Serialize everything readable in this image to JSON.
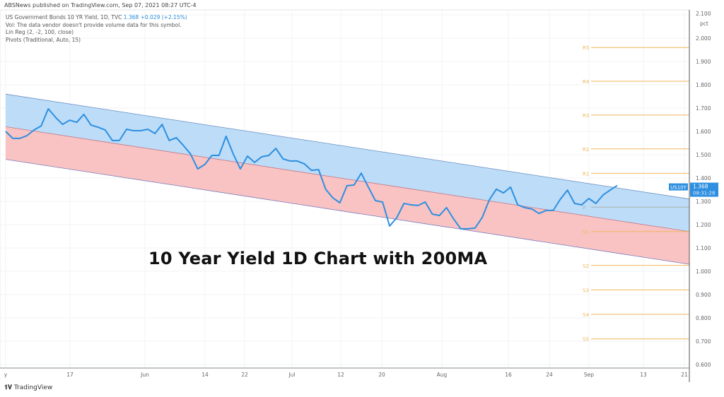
{
  "publisher_line": "ABSNews published on TradingView.com, Sep 07, 2021 08:27 UTC-4",
  "legend": {
    "symbol": "US Government Bonds 10 YR Yield, 1D, TVC",
    "price": "1.368",
    "change": "+0.029 (+2.15%)",
    "volume_note": "Vol: The data vendor doesn't provide volume data for this symbol.",
    "lin_reg": "Lin Reg (2, -2, 100, close)",
    "pivots": "Pivots (Traditional, Auto, 15)"
  },
  "overlay_title": "10 Year Yield 1D Chart with 200MA",
  "footer_logo": "TradingView",
  "colors": {
    "price_line": "#2e8fe0",
    "upper_band": "#bcdcf7",
    "lower_band": "#f9c3c3",
    "pivot_line": "#f0b55a",
    "pivot_p": "#b0b0b0",
    "price_tag": "#2e8fe0"
  },
  "chart_data": {
    "type": "line",
    "title": "",
    "xlabel": "",
    "ylabel": "",
    "unit_label": "pct",
    "ylim": [
      0.58,
      2.1
    ],
    "y_ticks": [
      "2.100",
      "2.000",
      "1.900",
      "1.800",
      "1.700",
      "1.600",
      "1.500",
      "1.400",
      "1.300",
      "1.200",
      "1.100",
      "1.000",
      "0.900",
      "0.800",
      "0.700",
      "0.600"
    ],
    "x_ticks": [
      "y",
      "17",
      "Jun",
      "14",
      "22",
      "Jul",
      "12",
      "20",
      "Aug",
      "16",
      "24",
      "Sep",
      "13",
      "21"
    ],
    "grid": true,
    "series": [
      {
        "name": "US10Y",
        "values": [
          1.6,
          1.57,
          1.57,
          1.582,
          1.606,
          1.624,
          1.697,
          1.661,
          1.63,
          1.648,
          1.639,
          1.673,
          1.627,
          1.618,
          1.606,
          1.561,
          1.561,
          1.609,
          1.603,
          1.603,
          1.609,
          1.591,
          1.63,
          1.561,
          1.573,
          1.539,
          1.503,
          1.439,
          1.458,
          1.497,
          1.497,
          1.579,
          1.503,
          1.439,
          1.494,
          1.467,
          1.491,
          1.497,
          1.527,
          1.482,
          1.473,
          1.473,
          1.461,
          1.433,
          1.436,
          1.352,
          1.315,
          1.294,
          1.367,
          1.37,
          1.421,
          1.361,
          1.303,
          1.297,
          1.194,
          1.23,
          1.291,
          1.285,
          1.282,
          1.297,
          1.245,
          1.239,
          1.273,
          1.224,
          1.182,
          1.182,
          1.185,
          1.23,
          1.306,
          1.352,
          1.336,
          1.361,
          1.285,
          1.273,
          1.267,
          1.248,
          1.261,
          1.261,
          1.309,
          1.348,
          1.291,
          1.285,
          1.312,
          1.291,
          1.327,
          1.348,
          1.368
        ]
      }
    ],
    "lin_reg_channel": {
      "upper": [
        1.76,
        1.31
      ],
      "middle": [
        1.62,
        1.17
      ],
      "lower": [
        1.48,
        1.03
      ]
    },
    "pivots": [
      {
        "label": "R5",
        "value": 1.96
      },
      {
        "label": "R4",
        "value": 1.815
      },
      {
        "label": "R3",
        "value": 1.67
      },
      {
        "label": "R2",
        "value": 1.525
      },
      {
        "label": "R1",
        "value": 1.42
      },
      {
        "label": "P",
        "value": 1.275
      },
      {
        "label": "S1",
        "value": 1.17
      },
      {
        "label": "S2",
        "value": 1.025
      },
      {
        "label": "S3",
        "value": 0.92
      },
      {
        "label": "S4",
        "value": 0.815
      },
      {
        "label": "S5",
        "value": 0.71
      }
    ],
    "last_price_tag": {
      "symbol": "US10Y",
      "price": "1.368",
      "countdown": "08:31:28"
    }
  }
}
